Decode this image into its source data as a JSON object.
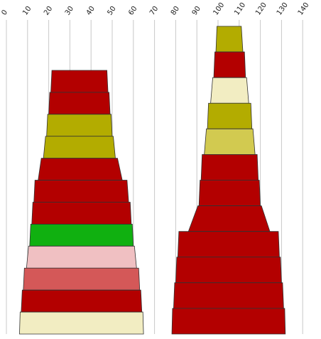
{
  "chart_data": {
    "type": "bar",
    "title": "",
    "xlabel": "",
    "ylabel": "",
    "x_axis": {
      "position": "top",
      "ticks": [
        0,
        10,
        20,
        30,
        40,
        50,
        60,
        70,
        80,
        90,
        100,
        110,
        120,
        130,
        140
      ],
      "tick_labels": [
        "0",
        "10",
        "20",
        "30",
        "40",
        "50",
        "60",
        "70",
        "80",
        "90",
        "100",
        "110",
        "120",
        "130",
        "140"
      ],
      "range": [
        0,
        140
      ],
      "label_rotation": "diagonal"
    },
    "grid": "vertical",
    "legend": "none",
    "stacks": [
      {
        "bands": [
          {
            "left": 21.5,
            "right": 47.5,
            "color": "#b30000"
          },
          {
            "left": 20.5,
            "right": 48.5,
            "color": "#b30000"
          },
          {
            "left": 19.5,
            "right": 49.5,
            "color": "#b3ac00"
          },
          {
            "left": 18.5,
            "right": 50.5,
            "color": "#b3ac00"
          },
          {
            "left": 16.5,
            "right": 52.5,
            "color": "#b30000"
          },
          {
            "left": 13.5,
            "right": 57.0,
            "color": "#b30000"
          },
          {
            "left": 12.5,
            "right": 58.5,
            "color": "#b30000"
          },
          {
            "left": 11.5,
            "right": 59.5,
            "color": "#10b010"
          },
          {
            "left": 10.5,
            "right": 60.5,
            "color": "#f0c0c2"
          },
          {
            "left": 8.5,
            "right": 62.5,
            "color": "#d45858"
          },
          {
            "left": 7.5,
            "right": 63.5,
            "color": "#b30000"
          },
          {
            "left": 6.5,
            "right": 64.5,
            "color": "#f2edc2"
          }
        ]
      },
      {
        "bands": [
          {
            "left": 99.5,
            "right": 111.0,
            "color": "#b3ac00"
          },
          {
            "left": 98.5,
            "right": 112.5,
            "color": "#b30000"
          },
          {
            "left": 97.5,
            "right": 113.5,
            "color": "#f2edc2"
          },
          {
            "left": 95.5,
            "right": 115.5,
            "color": "#b3ac00"
          },
          {
            "left": 94.5,
            "right": 116.5,
            "color": "#d2ca50"
          },
          {
            "left": 92.5,
            "right": 118.5,
            "color": "#b30000"
          },
          {
            "left": 91.5,
            "right": 119.5,
            "color": "#b30000"
          },
          {
            "left": 90.5,
            "right": 120.5,
            "color": "#b30000"
          },
          {
            "left": 81.5,
            "right": 128.5,
            "color": "#b30000"
          },
          {
            "left": 80.5,
            "right": 129.5,
            "color": "#b30000"
          },
          {
            "left": 79.5,
            "right": 130.5,
            "color": "#b30000"
          },
          {
            "left": 78.5,
            "right": 131.5,
            "color": "#b30000"
          }
        ]
      }
    ]
  }
}
